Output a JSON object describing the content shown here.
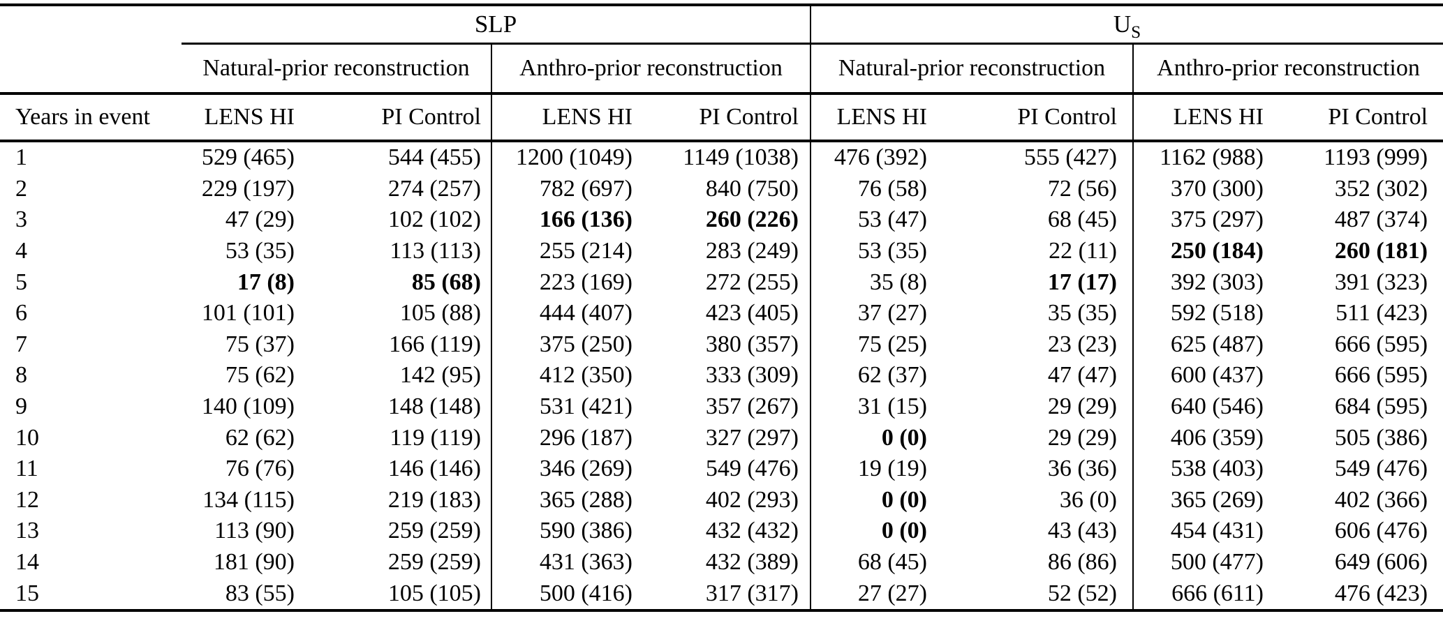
{
  "table": {
    "variable_groups": [
      {
        "label": "SLP"
      },
      {
        "base": "U",
        "sub": "S"
      }
    ],
    "prior_groups": [
      "Natural-prior reconstruction",
      "Anthro-prior reconstruction",
      "Natural-prior reconstruction",
      "Anthro-prior reconstruction"
    ],
    "row_header": "Years in event",
    "subcolumns": [
      "LENS HI",
      "PI Control",
      "LENS HI",
      "PI Control",
      "LENS HI",
      "PI Control",
      "LENS HI",
      "PI Control"
    ],
    "rows": [
      {
        "year": "1",
        "values": [
          "529 (465)",
          "544 (455)",
          "1200 (1049)",
          "1149 (1038)",
          "476 (392)",
          "555 (427)",
          "1162 (988)",
          "1193 (999)"
        ],
        "bold": []
      },
      {
        "year": "2",
        "values": [
          "229 (197)",
          "274 (257)",
          "782 (697)",
          "840 (750)",
          "76 (58)",
          "72 (56)",
          "370 (300)",
          "352 (302)"
        ],
        "bold": []
      },
      {
        "year": "3",
        "values": [
          "47 (29)",
          "102 (102)",
          "166 (136)",
          "260 (226)",
          "53 (47)",
          "68 (45)",
          "375 (297)",
          "487 (374)"
        ],
        "bold": [
          2,
          3
        ]
      },
      {
        "year": "4",
        "values": [
          "53 (35)",
          "113 (113)",
          "255 (214)",
          "283 (249)",
          "53 (35)",
          "22 (11)",
          "250 (184)",
          "260 (181)"
        ],
        "bold": [
          6,
          7
        ]
      },
      {
        "year": "5",
        "values": [
          "17 (8)",
          "85 (68)",
          "223 (169)",
          "272 (255)",
          "35 (8)",
          "17 (17)",
          "392 (303)",
          "391 (323)"
        ],
        "bold": [
          0,
          1,
          5
        ]
      },
      {
        "year": "6",
        "values": [
          "101 (101)",
          "105 (88)",
          "444 (407)",
          "423 (405)",
          "37 (27)",
          "35 (35)",
          "592 (518)",
          "511 (423)"
        ],
        "bold": []
      },
      {
        "year": "7",
        "values": [
          "75 (37)",
          "166 (119)",
          "375 (250)",
          "380 (357)",
          "75 (25)",
          "23 (23)",
          "625 (487)",
          "666 (595)"
        ],
        "bold": []
      },
      {
        "year": "8",
        "values": [
          "75 (62)",
          "142 (95)",
          "412 (350)",
          "333 (309)",
          "62 (37)",
          "47 (47)",
          "600 (437)",
          "666 (595)"
        ],
        "bold": []
      },
      {
        "year": "9",
        "values": [
          "140 (109)",
          "148 (148)",
          "531 (421)",
          "357 (267)",
          "31 (15)",
          "29 (29)",
          "640 (546)",
          "684 (595)"
        ],
        "bold": []
      },
      {
        "year": "10",
        "values": [
          "62 (62)",
          "119 (119)",
          "296 (187)",
          "327 (297)",
          "0 (0)",
          "29 (29)",
          "406 (359)",
          "505 (386)"
        ],
        "bold": [
          4
        ]
      },
      {
        "year": "11",
        "values": [
          "76 (76)",
          "146 (146)",
          "346 (269)",
          "549 (476)",
          "19 (19)",
          "36 (36)",
          "538 (403)",
          "549 (476)"
        ],
        "bold": []
      },
      {
        "year": "12",
        "values": [
          "134 (115)",
          "219 (183)",
          "365 (288)",
          "402 (293)",
          "0 (0)",
          "36 (0)",
          "365 (269)",
          "402 (366)"
        ],
        "bold": [
          4
        ]
      },
      {
        "year": "13",
        "values": [
          "113 (90)",
          "259 (259)",
          "590 (386)",
          "432 (432)",
          "0 (0)",
          "43 (43)",
          "454 (431)",
          "606 (476)"
        ],
        "bold": [
          4
        ]
      },
      {
        "year": "14",
        "values": [
          "181 (90)",
          "259 (259)",
          "431 (363)",
          "432 (389)",
          "68 (45)",
          "86 (86)",
          "500 (477)",
          "649 (606)"
        ],
        "bold": []
      },
      {
        "year": "15",
        "values": [
          "83 (55)",
          "105 (105)",
          "500 (416)",
          "317 (317)",
          "27 (27)",
          "52 (52)",
          "666 (611)",
          "476 (423)"
        ],
        "bold": []
      }
    ]
  },
  "colors": {
    "background": "#ffffff",
    "text": "#000000",
    "rule": "#000000"
  }
}
